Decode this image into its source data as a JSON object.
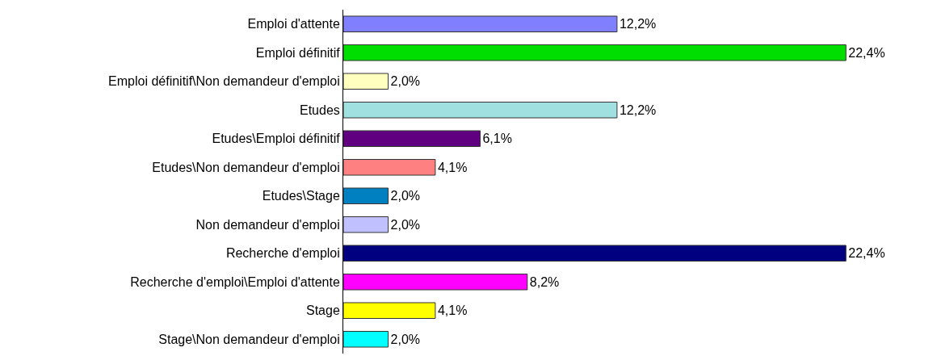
{
  "chart_data": {
    "type": "bar",
    "orientation": "horizontal",
    "categories": [
      "Emploi d'attente",
      "Emploi définitif",
      "Emploi définitif\\Non demandeur d'emploi",
      "Etudes",
      "Etudes\\Emploi définitif",
      "Etudes\\Non demandeur d'emploi",
      "Etudes\\Stage",
      "Non demandeur d'emploi",
      "Recherche d'emploi",
      "Recherche d'emploi\\Emploi d'attente",
      "Stage",
      "Stage\\Non demandeur d'emploi"
    ],
    "values": [
      12.2,
      22.4,
      2.0,
      12.2,
      6.1,
      4.1,
      2.0,
      2.0,
      22.4,
      8.2,
      4.1,
      2.0
    ],
    "value_labels": [
      "12,2%",
      "22,4%",
      "2,0%",
      "12,2%",
      "6,1%",
      "4,1%",
      "2,0%",
      "2,0%",
      "22,4%",
      "8,2%",
      "4,1%",
      "2,0%"
    ],
    "colors": [
      "#8080ff",
      "#00dd00",
      "#ffffc0",
      "#a0e0e0",
      "#600080",
      "#ff8080",
      "#0080c0",
      "#c0c0ff",
      "#000080",
      "#ff00ff",
      "#ffff00",
      "#00ffff"
    ]
  }
}
